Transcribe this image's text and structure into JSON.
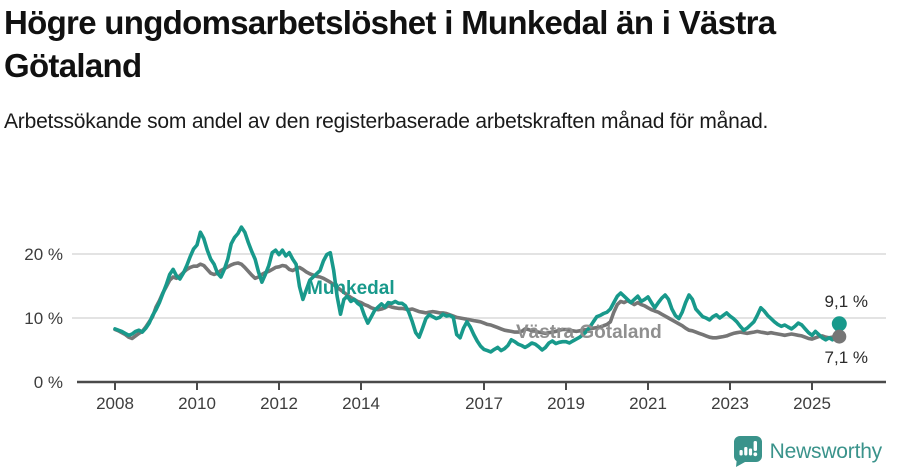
{
  "header": {
    "title": "Högre ungdomsarbetslöshet i Munkedal än i Västra Götaland",
    "subtitle": "Arbetssökande som andel av den registerbaserade arbetskraften månad för månad."
  },
  "footer": {
    "brand": "Newsworthy",
    "brand_color": "#3a938b",
    "logo_icon": "bar-chart-speech-bubble"
  },
  "chart_data": {
    "type": "line",
    "title": "Högre ungdomsarbetslöshet i Munkedal än i Västra Götaland",
    "subtitle": "Arbetssökande som andel av den registerbaserade arbetskraften månad för månad.",
    "unit": "%",
    "x_start": "2008-01",
    "x_end": "2025-09",
    "x_interval": "monthly",
    "x_tick_labels": [
      "2008",
      "2010",
      "2012",
      "2014",
      "2017",
      "2019",
      "2021",
      "2023",
      "2025"
    ],
    "x_tick_years": [
      2008,
      2010,
      2012,
      2014,
      2017,
      2019,
      2021,
      2023,
      2025
    ],
    "y_tick_labels": [
      "20 %",
      "10 %",
      "0 %"
    ],
    "y_tick_values": [
      20,
      10,
      0
    ],
    "ylim": [
      0,
      25
    ],
    "grid": "horizontal",
    "legend_position": "inline-labels",
    "colors": {
      "munkedal": "#18998b",
      "vastra_gotaland": "#767676",
      "grid": "#e3e3e3",
      "axis": "#4a4a4a"
    },
    "series": [
      {
        "name": "Munkedal",
        "color": "#18998b",
        "label_color": "#18998b",
        "end_label": "9,1 %",
        "end_value": 9.1,
        "values": [
          8.3,
          8.1,
          7.9,
          7.6,
          7.3,
          7.5,
          7.9,
          8.1,
          7.8,
          8.4,
          9.2,
          10.4,
          11.3,
          12.4,
          13.8,
          15.2,
          16.8,
          17.6,
          16.6,
          16.1,
          17.0,
          18.2,
          19.6,
          20.8,
          21.4,
          23.4,
          22.4,
          20.6,
          19.2,
          18.4,
          17.0,
          16.4,
          17.6,
          19.2,
          21.6,
          22.6,
          23.2,
          24.2,
          23.4,
          21.8,
          20.4,
          19.2,
          17.2,
          15.6,
          16.8,
          18.2,
          20.2,
          20.6,
          19.9,
          20.6,
          19.7,
          20.2,
          19.2,
          18.4,
          14.9,
          12.9,
          14.4,
          15.9,
          16.4,
          16.9,
          17.4,
          18.9,
          19.9,
          20.2,
          17.4,
          13.4,
          10.6,
          12.9,
          13.4,
          12.6,
          12.9,
          12.3,
          11.9,
          10.4,
          9.2,
          10.2,
          11.2,
          11.7,
          12.2,
          11.7,
          12.4,
          12.3,
          12.6,
          12.3,
          12.3,
          11.9,
          10.9,
          9.4,
          7.7,
          7.0,
          8.4,
          9.9,
          10.5,
          10.2,
          9.9,
          10.1,
          10.6,
          10.3,
          10.4,
          10.1,
          7.4,
          6.9,
          8.4,
          9.4,
          8.6,
          7.4,
          6.4,
          5.6,
          5.1,
          4.9,
          4.7,
          5.1,
          5.4,
          4.9,
          5.2,
          5.7,
          6.6,
          6.3,
          5.9,
          5.7,
          5.4,
          5.7,
          6.1,
          5.9,
          5.5,
          5.0,
          5.4,
          6.1,
          6.4,
          6.0,
          6.2,
          6.3,
          6.3,
          6.1,
          6.4,
          6.7,
          7.0,
          7.4,
          7.9,
          8.6,
          9.4,
          10.2,
          10.4,
          10.7,
          10.9,
          11.4,
          12.4,
          13.4,
          13.9,
          13.4,
          12.9,
          12.4,
          12.9,
          13.4,
          12.6,
          12.9,
          13.3,
          12.4,
          11.6,
          12.4,
          13.1,
          13.6,
          12.9,
          11.4,
          10.4,
          9.9,
          10.9,
          12.4,
          13.6,
          12.9,
          11.4,
          10.8,
          10.2,
          10.0,
          9.7,
          10.2,
          10.5,
          10.0,
          10.4,
          10.8,
          10.3,
          9.9,
          9.4,
          8.7,
          8.1,
          8.4,
          8.9,
          9.4,
          10.4,
          11.6,
          11.1,
          10.4,
          9.9,
          9.4,
          9.0,
          8.7,
          8.9,
          8.6,
          8.3,
          8.7,
          9.2,
          8.9,
          8.3,
          7.7,
          7.3,
          7.9,
          7.4,
          6.9,
          6.6,
          6.9,
          6.6,
          7.4,
          9.1
        ]
      },
      {
        "name": "Västra Götaland",
        "color": "#767676",
        "label_color": "#8f8f8f",
        "end_label": "7,1 %",
        "end_value": 7.1,
        "values": [
          8.2,
          8.0,
          7.7,
          7.4,
          7.0,
          6.8,
          7.2,
          7.6,
          7.9,
          8.6,
          9.4,
          10.2,
          11.7,
          12.7,
          13.9,
          14.9,
          15.9,
          16.4,
          16.2,
          16.6,
          17.1,
          17.6,
          17.9,
          18.1,
          18.1,
          18.4,
          18.2,
          17.6,
          17.0,
          16.8,
          17.0,
          17.4,
          17.7,
          18.0,
          18.3,
          18.5,
          18.6,
          18.4,
          17.9,
          17.3,
          16.7,
          16.2,
          16.4,
          16.8,
          17.1,
          17.3,
          17.6,
          17.9,
          18.0,
          18.2,
          18.1,
          17.6,
          17.4,
          17.7,
          17.9,
          17.6,
          17.2,
          16.9,
          16.7,
          16.5,
          16.4,
          16.2,
          15.9,
          15.6,
          15.2,
          14.8,
          14.4,
          14.0,
          13.6,
          13.2,
          12.9,
          12.6,
          12.4,
          12.1,
          11.9,
          11.6,
          11.4,
          11.3,
          11.4,
          11.6,
          11.9,
          11.7,
          11.6,
          11.5,
          11.5,
          11.4,
          11.3,
          11.4,
          11.2,
          11.0,
          10.9,
          10.8,
          10.9,
          11.0,
          10.9,
          10.8,
          10.8,
          10.7,
          10.5,
          10.3,
          10.1,
          10.0,
          9.9,
          9.8,
          9.7,
          9.6,
          9.5,
          9.4,
          9.2,
          9.0,
          8.9,
          8.7,
          8.5,
          8.3,
          8.1,
          8.0,
          7.9,
          7.8,
          7.8,
          7.9,
          8.3,
          8.2,
          8.0,
          7.9,
          7.8,
          7.7,
          7.6,
          7.7,
          7.8,
          7.9,
          8.1,
          8.2,
          8.2,
          8.1,
          8.0,
          7.9,
          8.0,
          8.1,
          8.2,
          8.3,
          8.4,
          8.5,
          8.6,
          8.8,
          9.0,
          9.4,
          10.9,
          12.1,
          12.6,
          12.4,
          12.7,
          12.4,
          12.1,
          12.4,
          12.1,
          11.9,
          11.6,
          11.3,
          11.1,
          10.9,
          10.6,
          10.3,
          10.0,
          9.7,
          9.4,
          9.1,
          8.8,
          8.4,
          8.1,
          8.0,
          7.8,
          7.6,
          7.4,
          7.2,
          7.0,
          6.9,
          6.9,
          7.0,
          7.1,
          7.2,
          7.4,
          7.6,
          7.7,
          7.8,
          7.7,
          7.6,
          7.7,
          7.8,
          7.9,
          7.8,
          7.7,
          7.6,
          7.7,
          7.6,
          7.5,
          7.4,
          7.3,
          7.4,
          7.5,
          7.4,
          7.3,
          7.2,
          7.0,
          6.8,
          6.7,
          6.9,
          7.1,
          7.2,
          7.0,
          6.9,
          7.0,
          7.2,
          7.1
        ]
      }
    ]
  }
}
